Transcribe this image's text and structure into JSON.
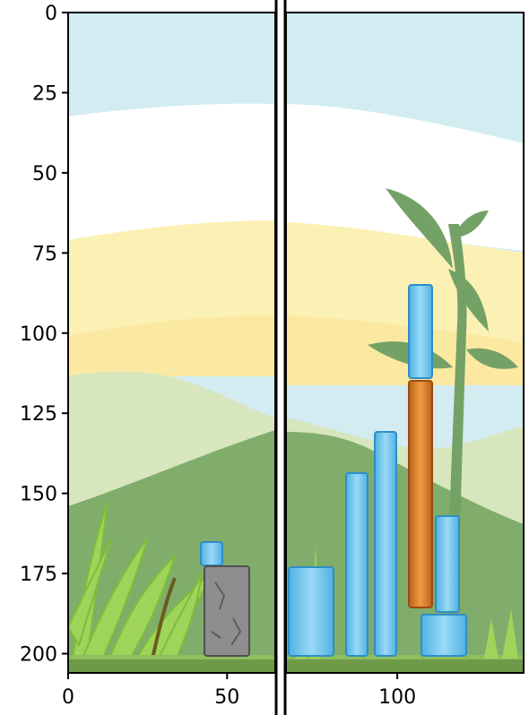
{
  "chart_data": {
    "type": "image",
    "xlim": [
      0,
      142
    ],
    "ylim": [
      206,
      0
    ],
    "y_axis_inverted": true,
    "x_ticks": [
      0,
      50,
      100
    ],
    "x_tick_labels": [
      "0",
      "50",
      "100"
    ],
    "y_ticks": [
      0,
      25,
      50,
      75,
      100,
      125,
      150,
      175,
      200
    ],
    "y_tick_labels": [
      "0",
      "25",
      "50",
      "75",
      "100",
      "125",
      "150",
      "175",
      "200"
    ],
    "grid": false,
    "split_at_x": 65
  },
  "scene": {
    "sky_color": "#d2ecf1",
    "cloud_color": "#ffffff",
    "sun_band_color": "#fcf1b4",
    "hill_far_color": "#d7e6bd",
    "hill_near_color": "#80ad6c",
    "ground_color": "#6e9a4a",
    "plant_silhouette_color": "#74a266",
    "fern_color": "#9ed45a",
    "ice_color": "#6ec4ea",
    "ice_edge_color": "#2d8fc6",
    "wood_color": "#d87a26",
    "wood_edge_color": "#9a4c10",
    "stone_color": "#8e8e8e",
    "stone_edge_color": "#4f4f4f"
  }
}
